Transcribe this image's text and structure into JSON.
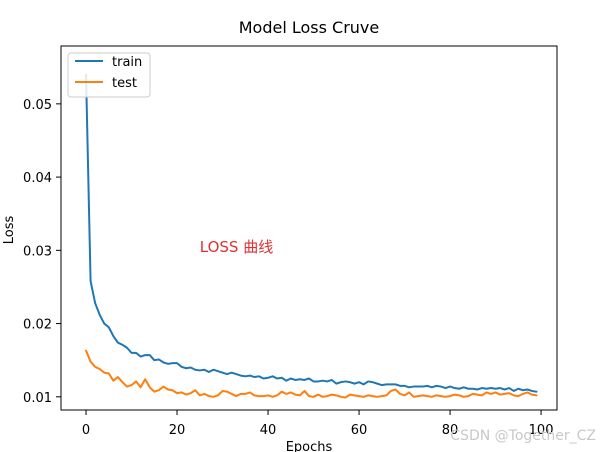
{
  "chart_data": {
    "type": "line",
    "title": "Model Loss Cruve",
    "xlabel": "Epochs",
    "ylabel": "Loss",
    "xlim": [
      -5.5,
      103.5
    ],
    "ylim": [
      0.0082,
      0.0579
    ],
    "xticks": [
      0,
      20,
      40,
      60,
      80,
      100
    ],
    "yticks": [
      0.01,
      0.02,
      0.03,
      0.04,
      0.05
    ],
    "xtick_labels": [
      "0",
      "20",
      "40",
      "60",
      "80",
      "100"
    ],
    "ytick_labels": [
      "0.01",
      "0.02",
      "0.03",
      "0.04",
      "0.05"
    ],
    "grid": false,
    "legend": {
      "location": "top-left",
      "entries": [
        "train",
        "test"
      ]
    },
    "annotation": {
      "text": "LOSS 曲线",
      "x": 25,
      "y": 0.0298,
      "color": "#e03030"
    },
    "watermark": "CSDN @Together_CZ",
    "series": [
      {
        "name": "train",
        "color": "#1f77b4",
        "x": [
          0,
          1,
          2,
          3,
          4,
          5,
          6,
          7,
          8,
          9,
          10,
          11,
          12,
          13,
          14,
          15,
          16,
          17,
          18,
          19,
          20,
          21,
          22,
          23,
          24,
          25,
          26,
          27,
          28,
          29,
          30,
          31,
          32,
          33,
          34,
          35,
          36,
          37,
          38,
          39,
          40,
          41,
          42,
          43,
          44,
          45,
          46,
          47,
          48,
          49,
          50,
          51,
          52,
          53,
          54,
          55,
          56,
          57,
          58,
          59,
          60,
          61,
          62,
          63,
          64,
          65,
          66,
          67,
          68,
          69,
          70,
          71,
          72,
          73,
          74,
          75,
          76,
          77,
          78,
          79,
          80,
          81,
          82,
          83,
          84,
          85,
          86,
          87,
          88,
          89,
          90,
          91,
          92,
          93,
          94,
          95,
          96,
          97,
          98,
          99
        ],
        "values": [
          0.054,
          0.0258,
          0.0228,
          0.0212,
          0.02,
          0.0195,
          0.0183,
          0.0174,
          0.0171,
          0.0167,
          0.016,
          0.016,
          0.0155,
          0.0157,
          0.0157,
          0.015,
          0.0151,
          0.0147,
          0.0145,
          0.0146,
          0.0146,
          0.0141,
          0.0139,
          0.014,
          0.0137,
          0.0136,
          0.0137,
          0.0134,
          0.0137,
          0.0135,
          0.0133,
          0.0131,
          0.0133,
          0.0131,
          0.0129,
          0.0128,
          0.0129,
          0.0127,
          0.0128,
          0.0125,
          0.0126,
          0.0128,
          0.0125,
          0.0126,
          0.0122,
          0.0125,
          0.0123,
          0.0124,
          0.0123,
          0.0125,
          0.0121,
          0.0121,
          0.0122,
          0.0121,
          0.0123,
          0.0118,
          0.012,
          0.0121,
          0.012,
          0.0118,
          0.012,
          0.0117,
          0.0121,
          0.012,
          0.0118,
          0.0116,
          0.0117,
          0.0117,
          0.0117,
          0.0115,
          0.0115,
          0.0113,
          0.0114,
          0.0114,
          0.0114,
          0.0115,
          0.0113,
          0.0115,
          0.0114,
          0.0112,
          0.0114,
          0.0112,
          0.0111,
          0.0113,
          0.0111,
          0.0111,
          0.011,
          0.0112,
          0.0111,
          0.0112,
          0.0111,
          0.0112,
          0.011,
          0.0112,
          0.0108,
          0.0111,
          0.0109,
          0.011,
          0.0108,
          0.0107
        ]
      },
      {
        "name": "test",
        "color": "#ff7f0e",
        "x": [
          0,
          1,
          2,
          3,
          4,
          5,
          6,
          7,
          8,
          9,
          10,
          11,
          12,
          13,
          14,
          15,
          16,
          17,
          18,
          19,
          20,
          21,
          22,
          23,
          24,
          25,
          26,
          27,
          28,
          29,
          30,
          31,
          32,
          33,
          34,
          35,
          36,
          37,
          38,
          39,
          40,
          41,
          42,
          43,
          44,
          45,
          46,
          47,
          48,
          49,
          50,
          51,
          52,
          53,
          54,
          55,
          56,
          57,
          58,
          59,
          60,
          61,
          62,
          63,
          64,
          65,
          66,
          67,
          68,
          69,
          70,
          71,
          72,
          73,
          74,
          75,
          76,
          77,
          78,
          79,
          80,
          81,
          82,
          83,
          84,
          85,
          86,
          87,
          88,
          89,
          90,
          91,
          92,
          93,
          94,
          95,
          96,
          97,
          98,
          99
        ],
        "values": [
          0.0163,
          0.0148,
          0.0141,
          0.0138,
          0.0133,
          0.0132,
          0.0122,
          0.0127,
          0.012,
          0.0114,
          0.0116,
          0.0121,
          0.0113,
          0.0124,
          0.0113,
          0.0107,
          0.0109,
          0.0114,
          0.011,
          0.0109,
          0.0105,
          0.0106,
          0.0103,
          0.0105,
          0.0109,
          0.0102,
          0.0104,
          0.0101,
          0.01,
          0.0102,
          0.0108,
          0.0107,
          0.0104,
          0.0101,
          0.0104,
          0.0104,
          0.0106,
          0.0102,
          0.0101,
          0.0101,
          0.0102,
          0.01,
          0.0102,
          0.0107,
          0.0104,
          0.0106,
          0.0103,
          0.0102,
          0.0108,
          0.0101,
          0.01,
          0.0103,
          0.01,
          0.0101,
          0.0103,
          0.0102,
          0.01,
          0.0099,
          0.0103,
          0.0102,
          0.0101,
          0.01,
          0.0102,
          0.0101,
          0.01,
          0.0101,
          0.0102,
          0.0108,
          0.011,
          0.0104,
          0.0102,
          0.0106,
          0.01,
          0.0101,
          0.0102,
          0.0101,
          0.01,
          0.0102,
          0.0101,
          0.01,
          0.0101,
          0.0103,
          0.0102,
          0.01,
          0.0101,
          0.0104,
          0.0103,
          0.0102,
          0.0106,
          0.0104,
          0.0106,
          0.0103,
          0.0104,
          0.0105,
          0.0102,
          0.0101,
          0.0104,
          0.0106,
          0.0103,
          0.0102
        ]
      }
    ]
  }
}
